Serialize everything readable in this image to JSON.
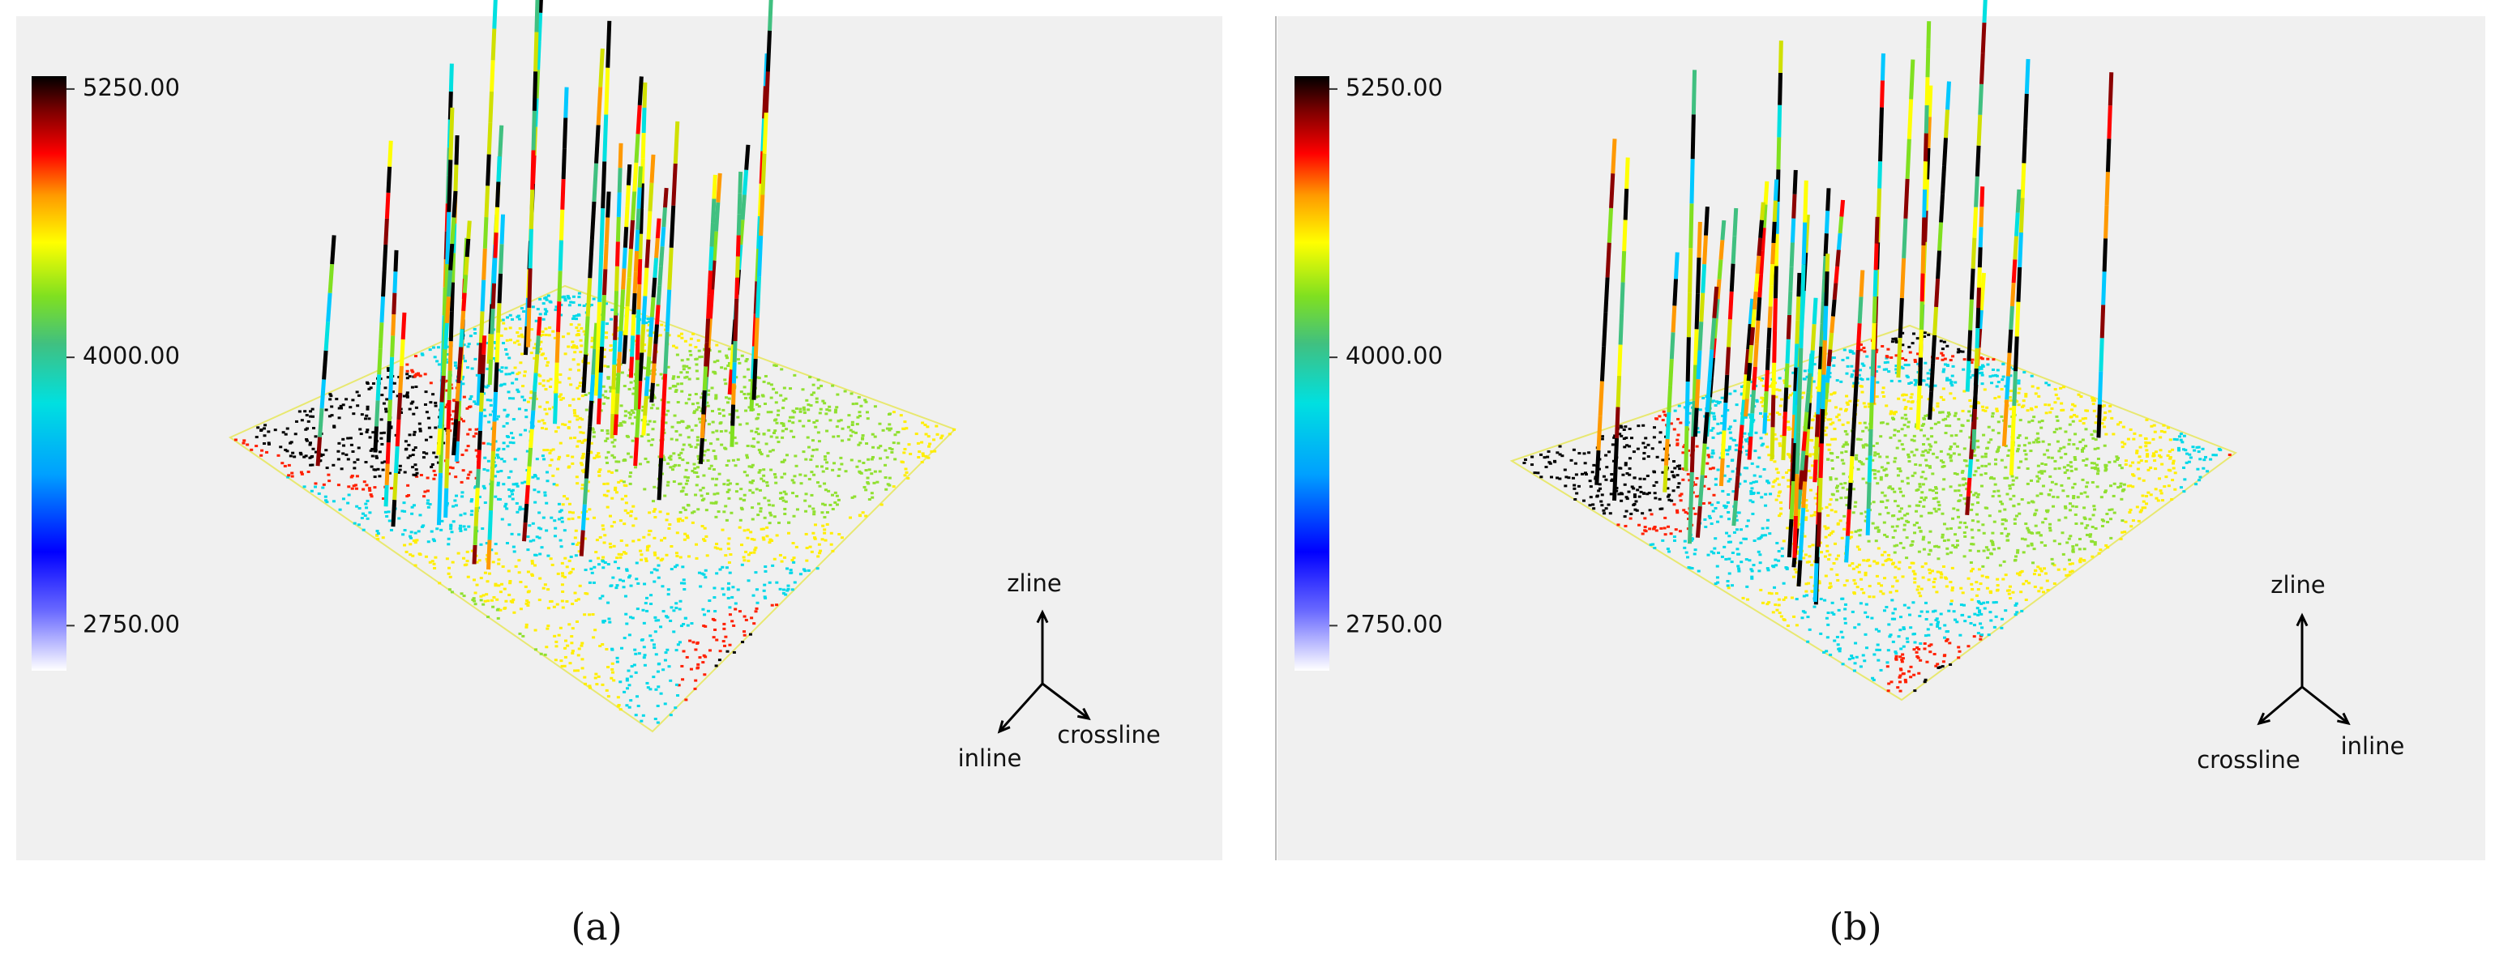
{
  "panels": [
    {
      "label": "(a)",
      "colorbar": {
        "lim": [
          2540,
          5310
        ],
        "ticks": [
          {
            "value": 5250,
            "label": "5250.00"
          },
          {
            "value": 4000,
            "label": "4000.00"
          },
          {
            "value": 2750,
            "label": "2750.00"
          }
        ]
      },
      "axes": {
        "z": "zline",
        "inline": "inline",
        "crossline": "crossline"
      }
    },
    {
      "label": "(b)",
      "colorbar": {
        "lim": [
          2540,
          5310
        ],
        "ticks": [
          {
            "value": 5250,
            "label": "5250.00"
          },
          {
            "value": 4000,
            "label": "4000.00"
          },
          {
            "value": 2750,
            "label": "2750.00"
          }
        ]
      },
      "axes": {
        "z": "zline",
        "inline": "inline",
        "crossline": "crossline"
      }
    }
  ]
}
